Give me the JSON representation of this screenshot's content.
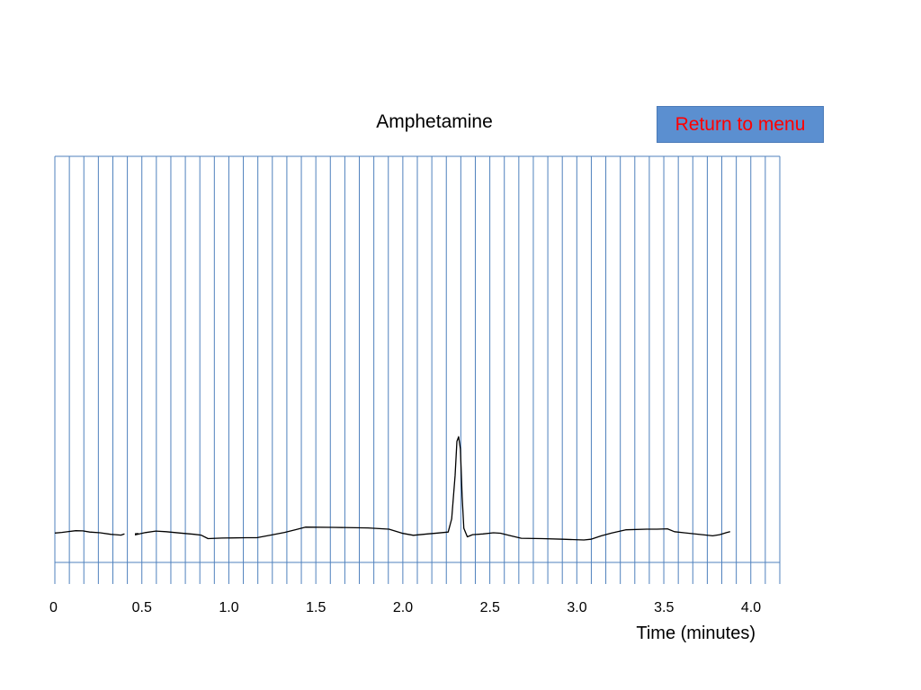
{
  "menu": {
    "return_label": "Return to menu"
  },
  "chart_data": {
    "type": "line",
    "title": "Amphetamine",
    "xlabel": "Time (minutes)",
    "ylabel": "",
    "xlim": [
      0,
      4.18
    ],
    "ylim": [
      -1,
      10
    ],
    "grid": true,
    "x_ticks": [
      {
        "value": 0,
        "label": "0"
      },
      {
        "value": 0.5,
        "label": "0.5"
      },
      {
        "value": 1.0,
        "label": "1.0"
      },
      {
        "value": 1.5,
        "label": "1.5"
      },
      {
        "value": 2.0,
        "label": "2.0"
      },
      {
        "value": 2.5,
        "label": "2.5"
      },
      {
        "value": 3.0,
        "label": "3.0"
      },
      {
        "value": 3.5,
        "label": "3.5"
      },
      {
        "value": 4.0,
        "label": "4.0"
      }
    ],
    "segments": [
      [
        [
          0.0,
          0.75
        ],
        [
          0.04,
          0.78
        ],
        [
          0.08,
          0.83
        ],
        [
          0.12,
          0.87
        ],
        [
          0.16,
          0.86
        ],
        [
          0.2,
          0.8
        ],
        [
          0.26,
          0.76
        ],
        [
          0.32,
          0.68
        ],
        [
          0.38,
          0.64
        ],
        [
          0.4,
          0.7
        ]
      ],
      [
        [
          0.46,
          0.71
        ],
        [
          0.48,
          0.72
        ]
      ],
      [
        [
          0.46,
          0.65
        ],
        [
          0.52,
          0.77
        ],
        [
          0.58,
          0.85
        ],
        [
          0.64,
          0.82
        ],
        [
          0.72,
          0.75
        ],
        [
          0.8,
          0.68
        ],
        [
          0.84,
          0.64
        ],
        [
          0.88,
          0.45
        ],
        [
          0.96,
          0.48
        ],
        [
          1.1,
          0.5
        ],
        [
          1.16,
          0.5
        ],
        [
          1.24,
          0.64
        ],
        [
          1.32,
          0.78
        ],
        [
          1.38,
          0.92
        ],
        [
          1.44,
          1.06
        ],
        [
          1.6,
          1.05
        ],
        [
          1.8,
          1.02
        ],
        [
          1.92,
          0.95
        ],
        [
          2.0,
          0.73
        ],
        [
          2.06,
          0.63
        ],
        [
          2.14,
          0.7
        ],
        [
          2.2,
          0.75
        ],
        [
          2.26,
          0.8
        ],
        [
          2.28,
          1.5
        ],
        [
          2.3,
          3.8
        ],
        [
          2.31,
          5.6
        ],
        [
          2.32,
          5.85
        ],
        [
          2.33,
          5.2
        ],
        [
          2.34,
          2.7
        ],
        [
          2.35,
          1.0
        ],
        [
          2.37,
          0.55
        ],
        [
          2.4,
          0.66
        ],
        [
          2.46,
          0.7
        ],
        [
          2.52,
          0.76
        ],
        [
          2.56,
          0.74
        ],
        [
          2.62,
          0.6
        ],
        [
          2.68,
          0.47
        ],
        [
          2.8,
          0.45
        ],
        [
          2.92,
          0.42
        ],
        [
          3.04,
          0.38
        ],
        [
          3.08,
          0.42
        ],
        [
          3.14,
          0.6
        ],
        [
          3.2,
          0.75
        ],
        [
          3.28,
          0.92
        ],
        [
          3.4,
          0.95
        ],
        [
          3.46,
          0.95
        ],
        [
          3.52,
          0.97
        ],
        [
          3.56,
          0.82
        ],
        [
          3.64,
          0.74
        ],
        [
          3.72,
          0.66
        ],
        [
          3.78,
          0.6
        ],
        [
          3.82,
          0.66
        ],
        [
          3.86,
          0.77
        ],
        [
          3.88,
          0.82
        ]
      ]
    ]
  }
}
